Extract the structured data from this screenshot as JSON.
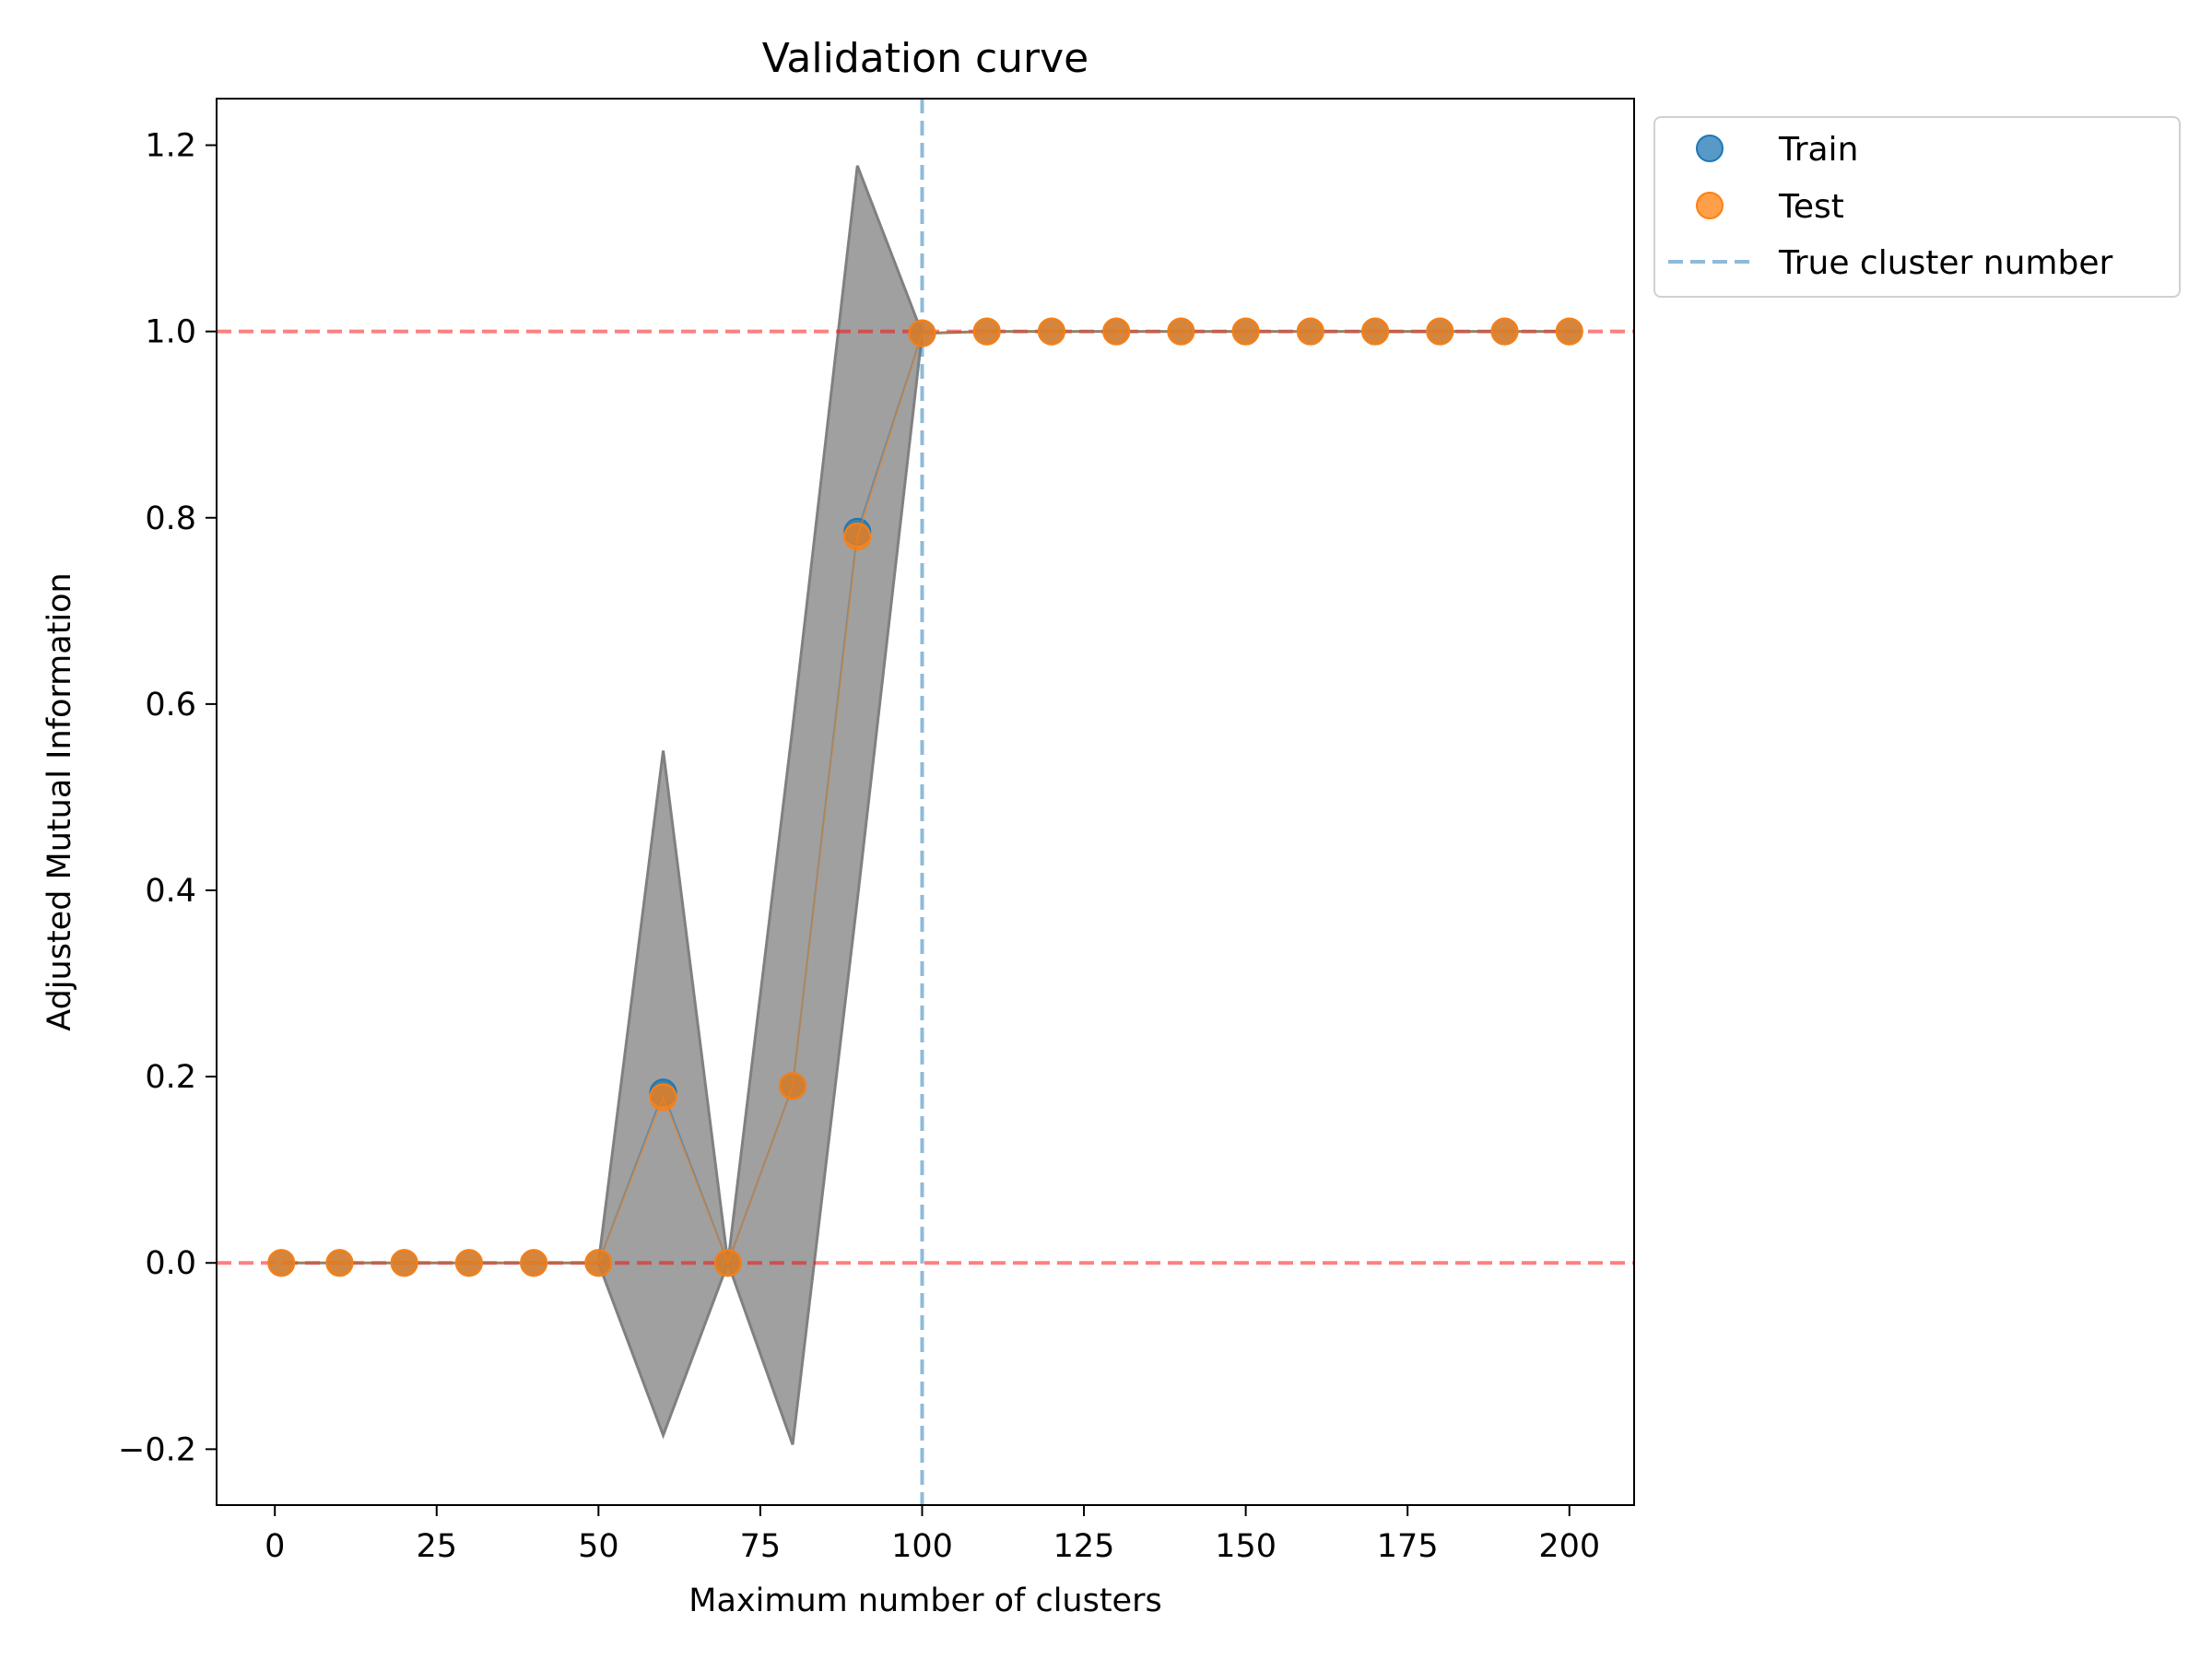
{
  "chart_data": {
    "type": "scatter",
    "title": "Validation curve",
    "xlabel": "Maximum number of clusters",
    "ylabel": "Adjusted Mutual Information",
    "xlim": [
      -9,
      210
    ],
    "ylim": [
      -0.26,
      1.25
    ],
    "xticks": [
      0,
      25,
      50,
      75,
      100,
      125,
      150,
      175,
      200
    ],
    "yticks": [
      -0.2,
      0.0,
      0.2,
      0.4,
      0.6,
      0.8,
      1.0,
      1.2
    ],
    "xtick_labels": [
      "0",
      "25",
      "50",
      "75",
      "100",
      "125",
      "150",
      "175",
      "200"
    ],
    "ytick_labels": [
      "−0.2",
      "0.0",
      "0.2",
      "0.4",
      "0.6",
      "0.8",
      "1.0",
      "1.2"
    ],
    "x": [
      1,
      10,
      20,
      30,
      40,
      50,
      60,
      70,
      80,
      90,
      100,
      110,
      120,
      130,
      140,
      150,
      160,
      170,
      180,
      190,
      200
    ],
    "series": [
      {
        "name": "Train",
        "color": "#1f77b4",
        "values": [
          0,
          0,
          0,
          0,
          0,
          0,
          0.183,
          0,
          0.19,
          0.785,
          0.998,
          1,
          1,
          1,
          1,
          1,
          1,
          1,
          1,
          1,
          1
        ]
      },
      {
        "name": "Test",
        "color": "#ff7f0e",
        "values": [
          0,
          0,
          0,
          0,
          0,
          0,
          0.178,
          0,
          0.19,
          0.78,
          0.998,
          1,
          1,
          1,
          1,
          1,
          1,
          1,
          1,
          1,
          1
        ]
      }
    ],
    "band": {
      "color": "#808080",
      "lower": [
        0,
        0,
        0,
        0,
        0,
        0,
        -0.185,
        0,
        -0.195,
        0.39,
        0.998,
        1,
        1,
        1,
        1,
        1,
        1,
        1,
        1,
        1,
        1
      ],
      "upper": [
        0,
        0,
        0,
        0,
        0,
        0,
        0.55,
        0,
        0.575,
        1.178,
        0.998,
        1,
        1,
        1,
        1,
        1,
        1,
        1,
        1,
        1,
        1
      ]
    },
    "reference_lines": {
      "horizontal": [
        0.0,
        1.0
      ],
      "horizontal_color": "#ff0000",
      "vertical": {
        "name": "True cluster number",
        "x": 100,
        "color": "#1f77b4"
      }
    },
    "legend": {
      "placement": "outside-upper-right"
    },
    "grid": false
  }
}
